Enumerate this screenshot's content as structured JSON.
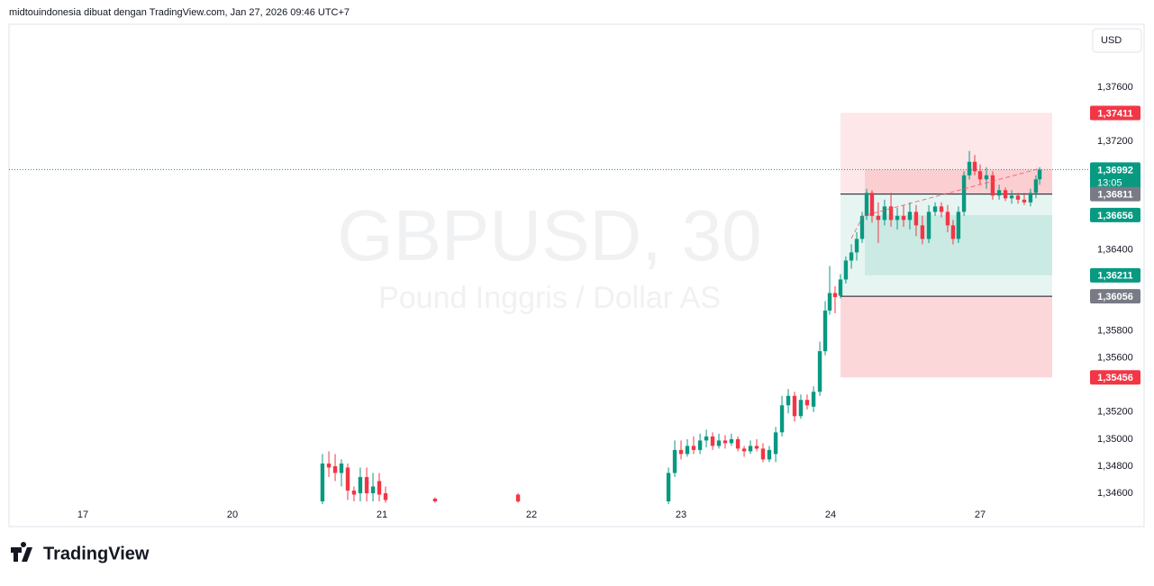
{
  "header": "midtouindonesia dibuat dengan TradingView.com, Jan 27, 2026 09:46 UTC+7",
  "footer_brand": "TradingView",
  "chart_data": {
    "type": "candlestick",
    "title": "GBPUSD, 30",
    "subtitle": "Pound Inggris / Dollar AS",
    "currency": "USD",
    "up_color": "#089981",
    "down_color": "#f23645",
    "xlim": [
      -0.494,
      6.735
    ],
    "ylim": [
      1.3452,
      1.38066
    ],
    "xticks": [
      {
        "value": 0,
        "label": "17"
      },
      {
        "value": 1,
        "label": "20"
      },
      {
        "value": 2,
        "label": "21"
      },
      {
        "value": 3,
        "label": "22"
      },
      {
        "value": 4,
        "label": "23"
      },
      {
        "value": 5,
        "label": "24"
      },
      {
        "value": 6,
        "label": "27"
      }
    ],
    "yticks": [
      {
        "value": 1.376,
        "label": "1,37600"
      },
      {
        "value": 1.372,
        "label": "1,37200"
      },
      {
        "value": 1.364,
        "label": "1,36400"
      },
      {
        "value": 1.358,
        "label": "1,35800"
      },
      {
        "value": 1.356,
        "label": "1,35600"
      },
      {
        "value": 1.352,
        "label": "1,35200"
      },
      {
        "value": 1.35,
        "label": "1,35000"
      },
      {
        "value": 1.348,
        "label": "1,34800"
      },
      {
        "value": 1.346,
        "label": "1,34600"
      }
    ],
    "candles": {
      "x": [
        1.602,
        1.645,
        1.687,
        1.729,
        1.771,
        1.813,
        1.855,
        1.898,
        1.94,
        1.982,
        2.024,
        2.355,
        2.91,
        3.916,
        3.958,
        4.0,
        4.042,
        4.084,
        4.127,
        4.169,
        4.211,
        4.253,
        4.295,
        4.337,
        4.38,
        4.422,
        4.464,
        4.506,
        4.548,
        4.59,
        4.633,
        4.675,
        4.717,
        4.759,
        4.801,
        4.843,
        4.886,
        4.928,
        4.964,
        4.994,
        5.03,
        5.066,
        5.102,
        5.139,
        5.175,
        5.211,
        5.241,
        5.277,
        5.319,
        5.361,
        5.404,
        5.446,
        5.488,
        5.53,
        5.572,
        5.614,
        5.657,
        5.699,
        5.741,
        5.783,
        5.819,
        5.855,
        5.892,
        5.928,
        5.964,
        6.0,
        6.042,
        6.084,
        6.127,
        6.169,
        6.211,
        6.253,
        6.295,
        6.337,
        6.373,
        6.398
      ],
      "open": [
        1.3454,
        1.3482,
        1.348,
        1.3475,
        1.3479,
        1.3462,
        1.346,
        1.3472,
        1.346,
        1.3469,
        1.346,
        1.3456,
        1.3459,
        1.3454,
        1.3475,
        1.3492,
        1.3489,
        1.3495,
        1.3492,
        1.3499,
        1.3502,
        1.3495,
        1.3499,
        1.3497,
        1.35,
        1.3493,
        1.3491,
        1.3495,
        1.3493,
        1.3485,
        1.3489,
        1.3505,
        1.3525,
        1.3532,
        1.3517,
        1.3529,
        1.3524,
        1.3535,
        1.3565,
        1.3595,
        1.3608,
        1.3606,
        1.3618,
        1.3632,
        1.3638,
        1.3648,
        1.3665,
        1.3682,
        1.3665,
        1.3662,
        1.3672,
        1.3662,
        1.3665,
        1.3662,
        1.3668,
        1.3658,
        1.3648,
        1.3668,
        1.3672,
        1.3668,
        1.3658,
        1.3648,
        1.3668,
        1.3695,
        1.3705,
        1.3698,
        1.3692,
        1.3695,
        1.368,
        1.3684,
        1.3678,
        1.368,
        1.3677,
        1.3675,
        1.3682,
        1.3692
      ],
      "high": [
        1.3489,
        1.3491,
        1.3489,
        1.3485,
        1.3482,
        1.3465,
        1.3479,
        1.3479,
        1.3475,
        1.3475,
        1.3465,
        1.3457,
        1.346,
        1.3479,
        1.3499,
        1.3499,
        1.35,
        1.3502,
        1.3504,
        1.3507,
        1.3505,
        1.3504,
        1.3503,
        1.3504,
        1.3502,
        1.3495,
        1.3499,
        1.35,
        1.3497,
        1.3495,
        1.3509,
        1.3532,
        1.3537,
        1.3535,
        1.3533,
        1.3533,
        1.3539,
        1.3572,
        1.3602,
        1.3628,
        1.3613,
        1.3622,
        1.3635,
        1.3644,
        1.3653,
        1.3668,
        1.3685,
        1.3684,
        1.3675,
        1.3677,
        1.3682,
        1.3671,
        1.3673,
        1.3675,
        1.3673,
        1.3665,
        1.3673,
        1.3675,
        1.3675,
        1.3673,
        1.3662,
        1.3672,
        1.3698,
        1.3713,
        1.371,
        1.3703,
        1.3701,
        1.3698,
        1.3688,
        1.3686,
        1.3684,
        1.3682,
        1.3682,
        1.3685,
        1.3695,
        1.3701
      ],
      "low": [
        1.3452,
        1.3472,
        1.3469,
        1.3465,
        1.3455,
        1.3454,
        1.3454,
        1.3454,
        1.3454,
        1.3454,
        1.3453,
        1.3453,
        1.3453,
        1.3452,
        1.3472,
        1.3485,
        1.3487,
        1.3489,
        1.3489,
        1.3494,
        1.3492,
        1.3493,
        1.3493,
        1.3495,
        1.3491,
        1.3487,
        1.3489,
        1.3491,
        1.3483,
        1.3483,
        1.3483,
        1.3502,
        1.3519,
        1.3513,
        1.3515,
        1.3522,
        1.352,
        1.3532,
        1.3562,
        1.3592,
        1.3593,
        1.3604,
        1.3615,
        1.3626,
        1.3632,
        1.3645,
        1.3662,
        1.366,
        1.3645,
        1.3658,
        1.3657,
        1.3655,
        1.3657,
        1.3655,
        1.365,
        1.3644,
        1.3645,
        1.3665,
        1.3664,
        1.3653,
        1.3644,
        1.3645,
        1.3665,
        1.3692,
        1.3695,
        1.3688,
        1.3685,
        1.3677,
        1.3677,
        1.3676,
        1.3674,
        1.3674,
        1.3673,
        1.3672,
        1.3678,
        1.3688
      ],
      "close": [
        1.3482,
        1.3479,
        1.3475,
        1.3482,
        1.3462,
        1.3459,
        1.3472,
        1.346,
        1.3465,
        1.3459,
        1.3455,
        1.3454,
        1.3454,
        1.3475,
        1.3492,
        1.3489,
        1.3495,
        1.3492,
        1.3499,
        1.3502,
        1.3495,
        1.3499,
        1.3497,
        1.35,
        1.3493,
        1.3491,
        1.3495,
        1.3493,
        1.3485,
        1.3492,
        1.3505,
        1.3525,
        1.3532,
        1.3517,
        1.3529,
        1.3525,
        1.3535,
        1.3565,
        1.3595,
        1.3608,
        1.3605,
        1.3618,
        1.3632,
        1.3638,
        1.3648,
        1.3665,
        1.3682,
        1.3665,
        1.3662,
        1.3672,
        1.3662,
        1.3665,
        1.3662,
        1.3668,
        1.3658,
        1.3648,
        1.3668,
        1.3672,
        1.3668,
        1.3658,
        1.3648,
        1.3668,
        1.3695,
        1.3705,
        1.3698,
        1.3692,
        1.3695,
        1.368,
        1.3684,
        1.3678,
        1.368,
        1.3677,
        1.3675,
        1.3682,
        1.3692,
        1.36992
      ]
    },
    "last_price": 1.36992,
    "zones": [
      {
        "x": [
          5.066,
          6.482
        ],
        "y": [
          1.37411,
          1.36811
        ],
        "color": "rgba(242,54,69,0.12)"
      },
      {
        "x": [
          5.229,
          6.482
        ],
        "y": [
          1.36992,
          1.36811
        ],
        "color": "rgba(242,54,69,0.14)"
      },
      {
        "x": [
          5.066,
          6.482
        ],
        "y": [
          1.36811,
          1.36056
        ],
        "color": "rgba(8,153,129,0.1)"
      },
      {
        "x": [
          5.229,
          6.482
        ],
        "y": [
          1.36656,
          1.36211
        ],
        "color": "rgba(8,153,129,0.12)"
      },
      {
        "x": [
          5.066,
          6.482
        ],
        "y": [
          1.36056,
          1.35456
        ],
        "color": "rgba(242,54,69,0.2)"
      }
    ],
    "levels": [
      {
        "x": [
          5.066,
          6.482
        ],
        "y": 1.36811
      },
      {
        "x": [
          5.066,
          6.482
        ],
        "y": 1.36056
      }
    ],
    "price_labels": [
      {
        "value": 1.37411,
        "label": "1,37411",
        "color": "#f23645"
      },
      {
        "value": 1.36992,
        "label": "1,36992",
        "sublabel": "13:05",
        "color": "#089981"
      },
      {
        "value": 1.36811,
        "label": "1,36811",
        "color": "#787b86"
      },
      {
        "value": 1.36656,
        "label": "1,36656",
        "color": "#089981"
      },
      {
        "value": 1.36211,
        "label": "1,36211",
        "color": "#089981"
      },
      {
        "value": 1.36056,
        "label": "1,36056",
        "color": "#787b86"
      },
      {
        "value": 1.35456,
        "label": "1,35456",
        "color": "#f23645"
      }
    ]
  }
}
